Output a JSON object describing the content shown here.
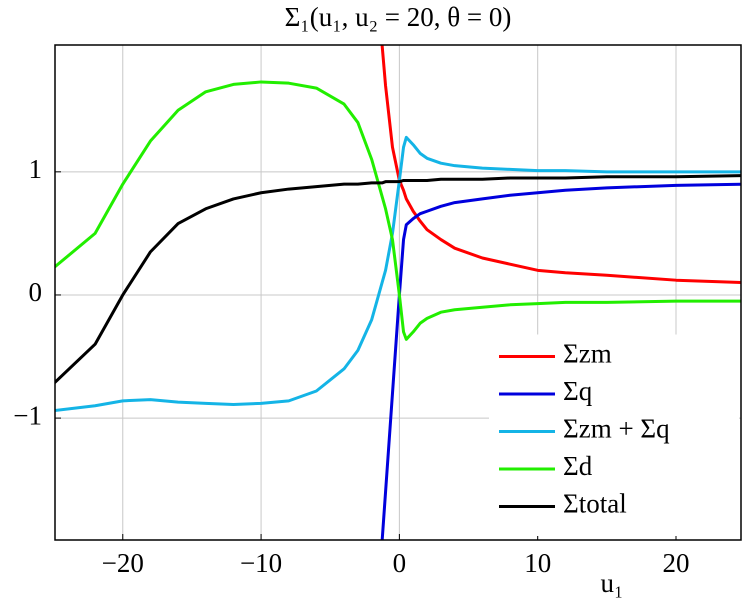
{
  "chart_data": {
    "type": "line",
    "title": "Σ₁(u₁, u₂ = 20, θ = 0)",
    "x_label": "u₁",
    "x": [
      -25,
      -22,
      -20,
      -18,
      -16,
      -14,
      -12,
      -10,
      -8,
      -6,
      -4,
      -3,
      -2,
      -1.5,
      -1.25,
      -1,
      -0.5,
      0,
      0.3,
      0.5,
      1,
      1.5,
      2,
      3,
      4,
      6,
      8,
      10,
      12,
      15,
      20,
      25
    ],
    "series": [
      {
        "name": "Σzm",
        "color": "#ff0000",
        "values": [
          null,
          null,
          null,
          null,
          null,
          null,
          null,
          null,
          null,
          null,
          null,
          null,
          null,
          null,
          2.03,
          1.7,
          1.2,
          0.93,
          0.85,
          0.78,
          0.68,
          0.6,
          0.53,
          0.45,
          0.38,
          0.3,
          0.25,
          0.2,
          0.18,
          0.16,
          0.12,
          0.1
        ]
      },
      {
        "name": "Σq",
        "color": "#0000dd",
        "values": [
          null,
          null,
          null,
          null,
          null,
          null,
          null,
          null,
          null,
          null,
          null,
          null,
          null,
          null,
          -2.0,
          -1.6,
          -0.8,
          0.0,
          0.45,
          0.57,
          0.62,
          0.66,
          0.68,
          0.72,
          0.75,
          0.78,
          0.81,
          0.83,
          0.85,
          0.87,
          0.89,
          0.9
        ]
      },
      {
        "name": "Σzm + Σq",
        "color": "#14b4e6",
        "values": [
          -0.94,
          -0.9,
          -0.86,
          -0.85,
          -0.87,
          -0.88,
          -0.89,
          -0.88,
          -0.86,
          -0.78,
          -0.6,
          -0.45,
          -0.2,
          0.0,
          0.1,
          0.2,
          0.5,
          0.93,
          1.2,
          1.28,
          1.22,
          1.15,
          1.11,
          1.07,
          1.05,
          1.03,
          1.02,
          1.01,
          1.01,
          1.0,
          1.0,
          1.0
        ]
      },
      {
        "name": "Σd",
        "color": "#22ee00",
        "values": [
          0.22,
          0.5,
          0.9,
          1.25,
          1.5,
          1.65,
          1.71,
          1.73,
          1.72,
          1.68,
          1.55,
          1.4,
          1.1,
          0.9,
          0.8,
          0.7,
          0.45,
          0.0,
          -0.3,
          -0.36,
          -0.3,
          -0.23,
          -0.19,
          -0.14,
          -0.12,
          -0.1,
          -0.08,
          -0.07,
          -0.06,
          -0.06,
          -0.05,
          -0.05
        ]
      },
      {
        "name": "Σtotal",
        "color": "#000000",
        "values": [
          -0.72,
          -0.4,
          0.0,
          0.35,
          0.58,
          0.7,
          0.78,
          0.83,
          0.86,
          0.88,
          0.9,
          0.9,
          0.91,
          0.91,
          0.91,
          0.92,
          0.92,
          0.92,
          0.93,
          0.93,
          0.93,
          0.93,
          0.93,
          0.94,
          0.94,
          0.94,
          0.95,
          0.95,
          0.95,
          0.96,
          0.96,
          0.97
        ]
      }
    ],
    "xlim": [
      -24.9,
      24.7
    ],
    "ylim": [
      -1.99,
      2.03
    ],
    "xticks": [
      {
        "value": -20,
        "label": "−20"
      },
      {
        "value": -10,
        "label": "−10"
      },
      0,
      10,
      20
    ],
    "yticks": [
      {
        "value": -1,
        "label": "−1"
      },
      0,
      1
    ],
    "grid": true,
    "legend": "lower right"
  }
}
